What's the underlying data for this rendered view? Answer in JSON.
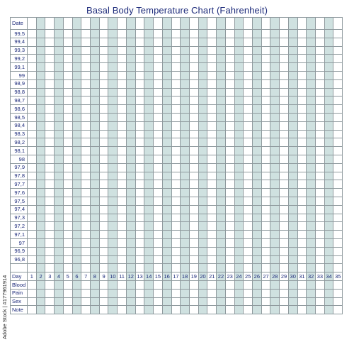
{
  "title": "Basal  Body Temperature Chart (Fahrenheit)",
  "watermark": "Adobe Stock | #177961914",
  "colors": {
    "text": "#1c2a7a",
    "stripe": "#cfe1e0",
    "grid_line": "#8f9a9e"
  },
  "row_labels": {
    "date": "Date",
    "day": "Day",
    "blood": "Blood",
    "pain": "Pain",
    "sex": "Sex",
    "note": "Note"
  },
  "temperatures": [
    "99,5",
    "99,4",
    "99,3",
    "99,2",
    "99,1",
    "99",
    "98,9",
    "98,8",
    "98,7",
    "98,6",
    "98,5",
    "98,4",
    "98,3",
    "98,2",
    "98,1",
    "98",
    "97,9",
    "97,8",
    "97,7",
    "97,6",
    "97,5",
    "97,4",
    "97,3",
    "97,2",
    "97,1",
    "97",
    "96,9",
    "96,8"
  ],
  "days": [
    "1",
    "2",
    "3",
    "4",
    "5",
    "6",
    "7",
    "8",
    "9",
    "10",
    "11",
    "12",
    "13",
    "14",
    "15",
    "16",
    "17",
    "18",
    "19",
    "20",
    "21",
    "22",
    "23",
    "24",
    "25",
    "26",
    "27",
    "28",
    "29",
    "30",
    "31",
    "32",
    "33",
    "34",
    "35"
  ]
}
